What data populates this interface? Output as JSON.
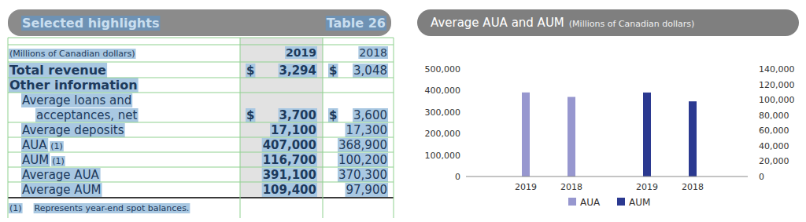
{
  "table": {
    "title": "Selected highlights",
    "label": "Table 26",
    "header": [
      "(Millions of Canadian dollars)",
      "2019",
      "2018"
    ],
    "rows": [
      {
        "kind": "total",
        "label": [
          "Total revenue"
        ],
        "currency": [
          "$",
          "$"
        ],
        "values": [
          "3,294",
          "3,048"
        ]
      },
      {
        "kind": "section",
        "label": [
          "Other information"
        ],
        "values": []
      },
      {
        "kind": "item",
        "label": [
          "Average loans and",
          "acceptances, net"
        ],
        "currency": [
          "$",
          "$"
        ],
        "values": [
          "3,700",
          "3,600"
        ]
      },
      {
        "kind": "item",
        "label": [
          "Average deposits"
        ],
        "values": [
          "17,100",
          "17,300"
        ]
      },
      {
        "kind": "item",
        "label": [
          "AUA"
        ],
        "note": "(1)",
        "values": [
          "407,000",
          "368,900"
        ]
      },
      {
        "kind": "item",
        "label": [
          "AUM"
        ],
        "note": "(1)",
        "values": [
          "116,700",
          "100,200"
        ]
      },
      {
        "kind": "item",
        "label": [
          "Average AUA"
        ],
        "values": [
          "391,100",
          "370,300"
        ]
      },
      {
        "kind": "item",
        "label": [
          "Average AUM"
        ],
        "values": [
          "109,400",
          "97,900"
        ]
      }
    ],
    "footnote": {
      "marker": "(1)",
      "text": "Represents year-end spot balances."
    }
  },
  "chart_data": {
    "type": "bar",
    "title": "Average AUA and AUM",
    "subtitle": "(Millions of Canadian dollars)",
    "categories": [
      "2019",
      "2018",
      "2019",
      "2018"
    ],
    "series": [
      {
        "name": "AUA",
        "color": "#9797cf",
        "values": [
          391100,
          370300,
          null,
          null
        ]
      },
      {
        "name": "AUM",
        "color": "#2b3990",
        "values": [
          null,
          null,
          109400,
          97900
        ],
        "axis": "y2"
      }
    ],
    "ylim": [
      0,
      500000
    ],
    "yticks": [
      0,
      {
        "value": 100000,
        "label": "100,000"
      },
      {
        "value": 200000,
        "label": "200,000"
      },
      {
        "value": 300000,
        "label": "300,000"
      },
      {
        "value": 400000,
        "label": "400,000"
      },
      {
        "value": 500000,
        "label": "500,000"
      }
    ],
    "y2lim": [
      0,
      140000
    ],
    "y2ticks": [
      0,
      {
        "value": 20000,
        "label": "20,000"
      },
      {
        "value": 40000,
        "label": "40,000"
      },
      {
        "value": 60000,
        "label": "60,000"
      },
      {
        "value": 80000,
        "label": "80,000"
      },
      {
        "value": 100000,
        "label": "100,000"
      },
      {
        "value": 120000,
        "label": "120,000"
      },
      {
        "value": 140000,
        "label": "140,000"
      }
    ],
    "grid": false,
    "legend": "bottom"
  }
}
